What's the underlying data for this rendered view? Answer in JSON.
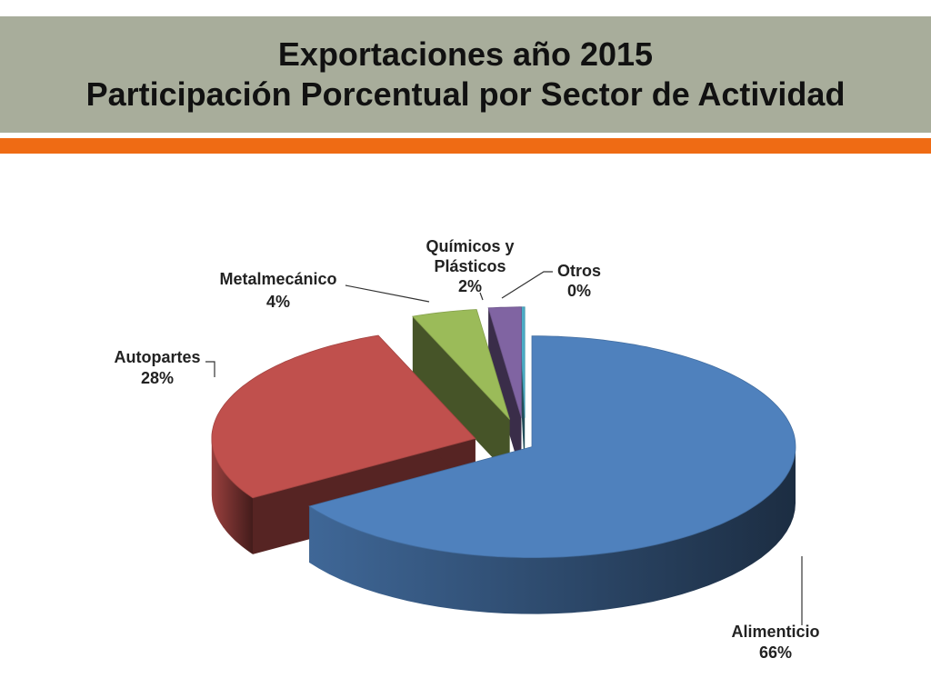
{
  "title": {
    "line1": "Exportaciones año 2015",
    "line2": "Participación Porcentual por Sector de Actividad"
  },
  "colors": {
    "title_band": "#a8ad9b",
    "accent_bar": "#ef6b14"
  },
  "chart_data": {
    "type": "pie",
    "style": "3d-exploded",
    "title": "Exportaciones año 2015 Participación Porcentual por Sector de Actividad",
    "slices": [
      {
        "category": "Alimenticio",
        "value": 66,
        "label": "66%",
        "color": "#4f81bd"
      },
      {
        "category": "Autopartes",
        "value": 28,
        "label": "28%",
        "color": "#c0504d"
      },
      {
        "category": "Metalmecánico",
        "value": 4,
        "label": "4%",
        "color": "#9bbb59"
      },
      {
        "category": "Químicos y Plásticos",
        "value": 2,
        "label": "2%",
        "color": "#8064a2"
      },
      {
        "category": "Otros",
        "value": 0,
        "label": "0%",
        "color": "#4bacc6"
      }
    ],
    "labels": {
      "alimenticio": {
        "name": "Alimenticio",
        "pct": "66%"
      },
      "autopartes": {
        "name": "Autopartes",
        "pct": "28%"
      },
      "metalmecanico": {
        "name": "Metalmecánico",
        "pct": "4%"
      },
      "quimicos": {
        "name1": "Químicos y",
        "name2": "Plásticos",
        "pct": "2%"
      },
      "otros": {
        "name": "Otros",
        "pct": "0%"
      }
    }
  }
}
